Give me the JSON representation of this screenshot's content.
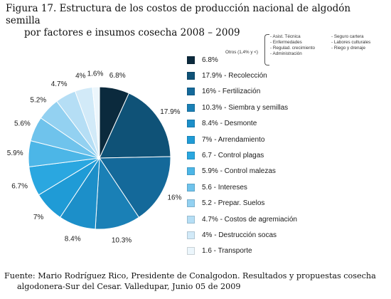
{
  "title_line1": "Figura 17. Estructura de los costos de producción nacional de algodón semilla",
  "title_line2": "por factores e insumos cosecha 2008 – 2009",
  "caption_line1": "Fuente: Mario Rodríguez Rico, Presidente de Conalgodon. Resultados y propuestas cosecha",
  "caption_line2": "algodonera-Sur del Cesar. Valledupar, Junio 05 de 2009",
  "otros_label": "Otros (1,4% y <)",
  "otros_items": [
    "- Asist. Técnica",
    "- Seguro cartera",
    "- Enfermedades",
    "- Labores culturales",
    "- Regulad. crecimiento",
    "- Riego y drenaje",
    "- Administración",
    ""
  ],
  "chart_data": {
    "type": "pie",
    "slices": [
      {
        "value": 6.8,
        "label": "6.8%",
        "legend": "6.8%",
        "color": "#0b2a3d"
      },
      {
        "value": 17.9,
        "label": "17.9%",
        "legend": "17.9% - Recolección",
        "color": "#0f5277"
      },
      {
        "value": 16,
        "label": "16%",
        "legend": "16% - Fertilización",
        "color": "#14699a"
      },
      {
        "value": 10.3,
        "label": "10.3%",
        "legend": "10.3% - Siembra y semillas",
        "color": "#1a80b6"
      },
      {
        "value": 8.4,
        "label": "8.4%",
        "legend": "8.4% - Desmonte",
        "color": "#1c8fc9"
      },
      {
        "value": 7,
        "label": "7%",
        "legend": "7% - Arrendamiento",
        "color": "#1f9bd6"
      },
      {
        "value": 6.7,
        "label": "6.7%",
        "legend": "6.7 - Control plagas",
        "color": "#2aa7e0"
      },
      {
        "value": 5.9,
        "label": "5.9%",
        "legend": "5.9% - Control malezas",
        "color": "#4cb6e7"
      },
      {
        "value": 5.6,
        "label": "5.6%",
        "legend": "5.6 - Intereses",
        "color": "#6fc3ec"
      },
      {
        "value": 5.2,
        "label": "5.2%",
        "legend": "5.2 - Prepar. Suelos",
        "color": "#93d1f1"
      },
      {
        "value": 4.7,
        "label": "4.7%",
        "legend": "4.7% - Costos de agremiación",
        "color": "#b5def5"
      },
      {
        "value": 4,
        "label": "4%",
        "legend": "4% - Destrucción socas",
        "color": "#d2eaf8"
      },
      {
        "value": 1.6,
        "label": "1.6%",
        "legend": "1.6 - Transporte",
        "color": "#ecf6fc"
      }
    ]
  }
}
